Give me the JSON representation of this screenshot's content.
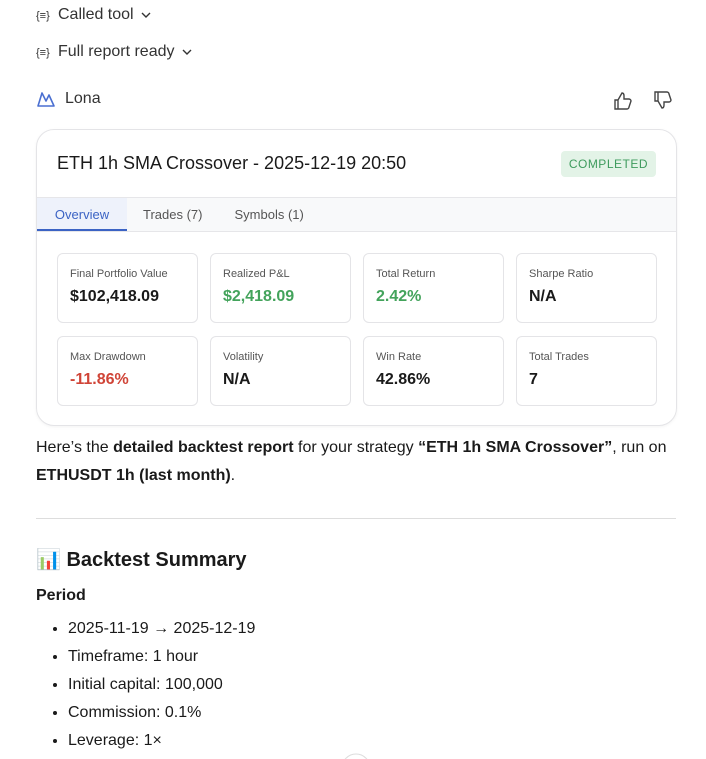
{
  "steps": [
    "Called tool",
    "Full report ready"
  ],
  "assistant": {
    "name": "Lona"
  },
  "card": {
    "title": "ETH 1h SMA Crossover - 2025-12-19 20:50",
    "status": "COMPLETED",
    "tabs": [
      "Overview",
      "Trades (7)",
      "Symbols (1)"
    ],
    "metrics": [
      {
        "label": "Final Portfolio Value",
        "value": "$102,418.09"
      },
      {
        "label": "Realized P&L",
        "value": "$2,418.09"
      },
      {
        "label": "Total Return",
        "value": "2.42%"
      },
      {
        "label": "Sharpe Ratio",
        "value": "N/A"
      },
      {
        "label": "Max Drawdown",
        "value": "-11.86%"
      },
      {
        "label": "Volatility",
        "value": "N/A"
      },
      {
        "label": "Win Rate",
        "value": "42.86%"
      },
      {
        "label": "Total Trades",
        "value": "7"
      }
    ]
  },
  "message": {
    "parts": [
      "Here’s the ",
      "detailed backtest report",
      " for your strategy ",
      "“ETH 1h SMA Crossover”",
      ", run on ",
      "ETHUSDT 1h (last month)",
      "."
    ]
  },
  "summary": {
    "heading": "📊 Backtest Summary",
    "subheading": "Period",
    "items": [
      "2025-11-19 → 2025-12-19",
      "Timeframe: 1 hour",
      "Initial capital: 100,000",
      "Commission: 0.1%",
      "Leverage: 1×"
    ]
  }
}
